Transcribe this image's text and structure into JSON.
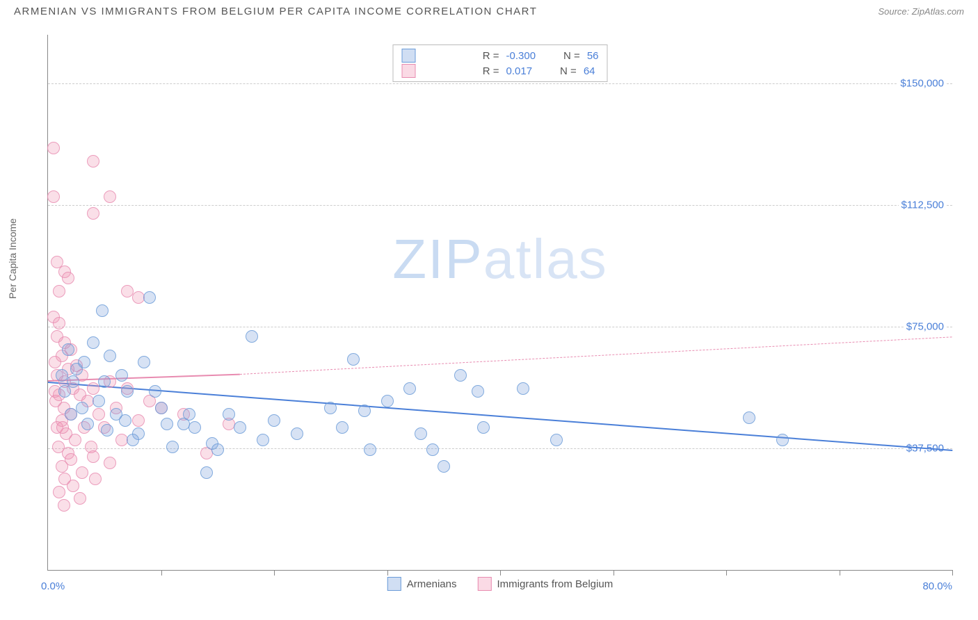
{
  "header": {
    "title": "ARMENIAN VS IMMIGRANTS FROM BELGIUM PER CAPITA INCOME CORRELATION CHART",
    "source": "Source: ZipAtlas.com"
  },
  "chart": {
    "ylabel": "Per Capita Income",
    "xlim": [
      0,
      80
    ],
    "ylim": [
      0,
      165000
    ],
    "xlabel_min": "0.0%",
    "xlabel_max": "80.0%",
    "xtick_positions": [
      0,
      10,
      20,
      30,
      40,
      50,
      60,
      70,
      80
    ],
    "yticks": [
      {
        "v": 37500,
        "label": "$37,500"
      },
      {
        "v": 75000,
        "label": "$75,000"
      },
      {
        "v": 112500,
        "label": "$112,500"
      },
      {
        "v": 150000,
        "label": "$150,000"
      }
    ],
    "watermark": {
      "zip": "ZIP",
      "atlas": "atlas"
    },
    "legend_top": {
      "series": [
        {
          "color": "blue",
          "r_label": "R =",
          "r_value": "-0.300",
          "n_label": "N =",
          "n_value": "56"
        },
        {
          "color": "pink",
          "r_label": "R =",
          "r_value": "0.017",
          "n_label": "N =",
          "n_value": "64"
        }
      ]
    },
    "legend_bottom": [
      {
        "color": "blue",
        "label": "Armenians"
      },
      {
        "color": "pink",
        "label": "Immigrants from Belgium"
      }
    ],
    "trend_lines": {
      "blue": {
        "x1": 0,
        "y1": 58000,
        "x2": 80,
        "y2": 37000
      },
      "pink_solid": {
        "x1": 0,
        "y1": 58500,
        "x2": 17,
        "y2": 60500
      },
      "pink_dash": {
        "x1": 17,
        "y1": 60500,
        "x2": 80,
        "y2": 72000
      }
    },
    "series": {
      "blue": [
        [
          1.2,
          60000
        ],
        [
          1.5,
          55000
        ],
        [
          1.8,
          68000
        ],
        [
          2.0,
          48000
        ],
        [
          2.2,
          58000
        ],
        [
          2.5,
          62000
        ],
        [
          3.0,
          50000
        ],
        [
          3.2,
          64000
        ],
        [
          3.5,
          45000
        ],
        [
          4.0,
          70000
        ],
        [
          4.5,
          52000
        ],
        [
          5.0,
          58000
        ],
        [
          5.5,
          66000
        ],
        [
          6.0,
          48000
        ],
        [
          6.5,
          60000
        ],
        [
          7.0,
          55000
        ],
        [
          8.0,
          42000
        ],
        [
          8.5,
          64000
        ],
        [
          9.0,
          84000
        ],
        [
          10.0,
          50000
        ],
        [
          11.0,
          38000
        ],
        [
          12.0,
          45000
        ],
        [
          13.0,
          44000
        ],
        [
          14.0,
          30000
        ],
        [
          14.5,
          39000
        ],
        [
          15.0,
          37000
        ],
        [
          16.0,
          48000
        ],
        [
          18.0,
          72000
        ],
        [
          20.0,
          46000
        ],
        [
          22.0,
          42000
        ],
        [
          25.0,
          50000
        ],
        [
          26.0,
          44000
        ],
        [
          27.0,
          65000
        ],
        [
          28.0,
          49000
        ],
        [
          28.5,
          37000
        ],
        [
          30.0,
          52000
        ],
        [
          32.0,
          56000
        ],
        [
          33.0,
          42000
        ],
        [
          34.0,
          37000
        ],
        [
          35.0,
          32000
        ],
        [
          36.5,
          60000
        ],
        [
          38.0,
          55000
        ],
        [
          38.5,
          44000
        ],
        [
          42.0,
          56000
        ],
        [
          45.0,
          40000
        ],
        [
          62.0,
          47000
        ],
        [
          65.0,
          40000
        ],
        [
          4.8,
          80000
        ],
        [
          5.2,
          43000
        ],
        [
          6.8,
          46000
        ],
        [
          7.5,
          40000
        ],
        [
          9.5,
          55000
        ],
        [
          10.5,
          45000
        ],
        [
          12.5,
          48000
        ],
        [
          17.0,
          44000
        ],
        [
          19.0,
          40000
        ]
      ],
      "pink": [
        [
          0.5,
          130000
        ],
        [
          4.0,
          126000
        ],
        [
          0.5,
          115000
        ],
        [
          5.5,
          115000
        ],
        [
          4.0,
          110000
        ],
        [
          0.8,
          95000
        ],
        [
          1.5,
          92000
        ],
        [
          1.8,
          90000
        ],
        [
          1.0,
          86000
        ],
        [
          7.0,
          86000
        ],
        [
          8.0,
          84000
        ],
        [
          0.5,
          78000
        ],
        [
          1.0,
          76000
        ],
        [
          0.8,
          72000
        ],
        [
          1.5,
          70000
        ],
        [
          2.0,
          68000
        ],
        [
          1.2,
          66000
        ],
        [
          0.6,
          64000
        ],
        [
          2.5,
          63000
        ],
        [
          1.8,
          62000
        ],
        [
          3.0,
          60000
        ],
        [
          0.8,
          60000
        ],
        [
          1.5,
          58000
        ],
        [
          2.2,
          56000
        ],
        [
          4.0,
          56000
        ],
        [
          1.0,
          54000
        ],
        [
          2.8,
          54000
        ],
        [
          0.7,
          52000
        ],
        [
          3.5,
          52000
        ],
        [
          1.4,
          50000
        ],
        [
          6.0,
          50000
        ],
        [
          2.0,
          48000
        ],
        [
          4.5,
          48000
        ],
        [
          1.2,
          46000
        ],
        [
          8.0,
          46000
        ],
        [
          0.8,
          44000
        ],
        [
          3.2,
          44000
        ],
        [
          5.0,
          44000
        ],
        [
          1.6,
          42000
        ],
        [
          2.4,
          40000
        ],
        [
          6.5,
          40000
        ],
        [
          0.9,
          38000
        ],
        [
          3.8,
          38000
        ],
        [
          1.8,
          36000
        ],
        [
          4.0,
          35000
        ],
        [
          14.0,
          36000
        ],
        [
          2.0,
          34000
        ],
        [
          5.5,
          33000
        ],
        [
          1.2,
          32000
        ],
        [
          3.0,
          30000
        ],
        [
          1.5,
          28000
        ],
        [
          2.2,
          26000
        ],
        [
          4.2,
          28000
        ],
        [
          1.0,
          24000
        ],
        [
          2.8,
          22000
        ],
        [
          1.4,
          20000
        ],
        [
          5.5,
          58000
        ],
        [
          7.0,
          56000
        ],
        [
          9.0,
          52000
        ],
        [
          10.0,
          50000
        ],
        [
          12.0,
          48000
        ],
        [
          16.0,
          45000
        ],
        [
          0.6,
          55000
        ],
        [
          1.3,
          44000
        ]
      ]
    }
  }
}
